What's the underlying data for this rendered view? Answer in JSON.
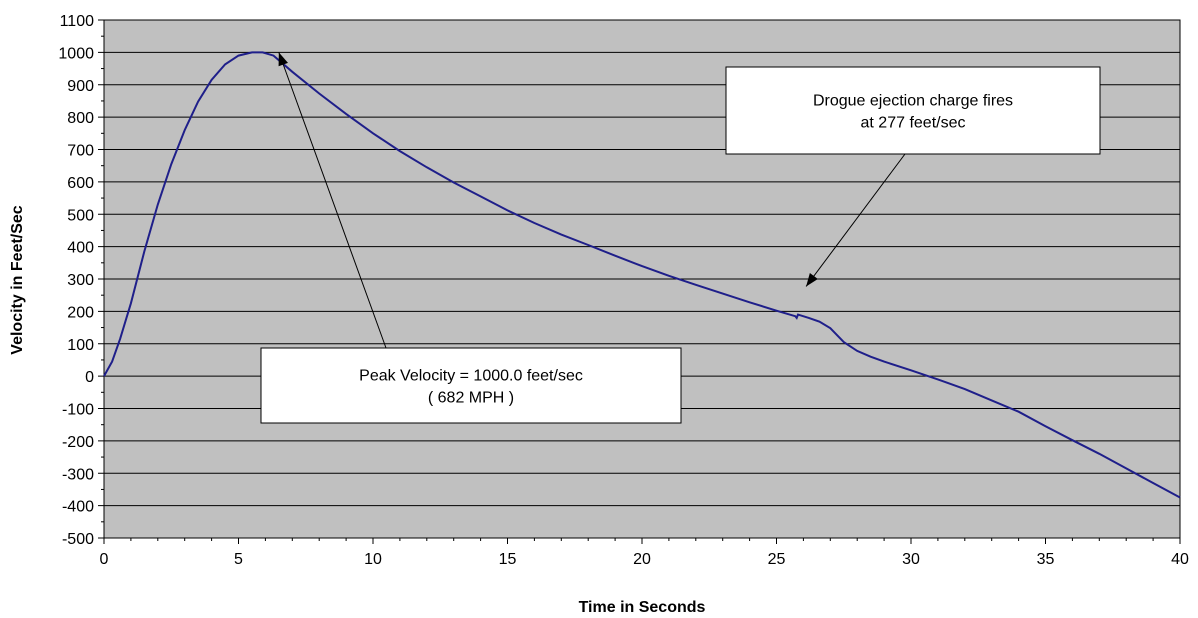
{
  "chart_data": {
    "type": "line",
    "title": "",
    "xlabel": "Time in Seconds",
    "ylabel": "Velocity in Feet/Sec",
    "xlim": [
      0,
      40
    ],
    "ylim": [
      -500,
      1100
    ],
    "x_ticks": [
      0,
      5,
      10,
      15,
      20,
      25,
      30,
      35,
      40
    ],
    "y_ticks": [
      -500,
      -400,
      -300,
      -200,
      -100,
      0,
      100,
      200,
      300,
      400,
      500,
      600,
      700,
      800,
      900,
      1000,
      1100
    ],
    "grid": true,
    "plot_background": "#c0c0c0",
    "series": [
      {
        "color": "#1f1f8a",
        "x": [
          0,
          0.3,
          0.6,
          1,
          1.5,
          2,
          2.5,
          3,
          3.5,
          4,
          4.5,
          5,
          5.5,
          5.9,
          6.3,
          7,
          8,
          9,
          10,
          11,
          12,
          13,
          14,
          15,
          16,
          17,
          18,
          19,
          20,
          21,
          22,
          23,
          24,
          25,
          25.7,
          25.75,
          25.8,
          26.2,
          26.6,
          27,
          27.5,
          28,
          28.5,
          29,
          30,
          31,
          32,
          33,
          34,
          35,
          36,
          37,
          38,
          39,
          40
        ],
        "y": [
          0,
          45,
          115,
          225,
          385,
          530,
          655,
          760,
          848,
          915,
          963,
          990,
          1000,
          1000,
          990,
          940,
          873,
          810,
          750,
          695,
          645,
          598,
          555,
          512,
          473,
          437,
          405,
          372,
          340,
          310,
          282,
          255,
          228,
          202,
          185,
          180,
          190,
          180,
          168,
          148,
          105,
          78,
          60,
          45,
          18,
          -10,
          -40,
          -75,
          -110,
          -155,
          -198,
          -240,
          -285,
          -330,
          -375
        ]
      }
    ],
    "annotations": [
      {
        "lines": [
          "Peak Velocity = 1000.0 feet/sec",
          "( 682 MPH )"
        ],
        "arrow_to": [
          6.5,
          1000
        ]
      },
      {
        "lines": [
          "Drogue ejection charge fires",
          "at 277 feet/sec"
        ],
        "arrow_to": [
          26.1,
          277
        ]
      }
    ]
  }
}
